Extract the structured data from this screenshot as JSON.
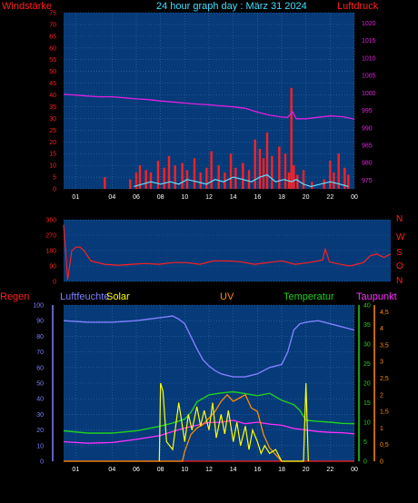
{
  "title": "24 hour graph day : März 31 2024",
  "colors": {
    "panel_bg": "#063a78",
    "grid": "#2f6fb8",
    "wind_axis": "#ff2020",
    "pressure_axis": "#e020e0",
    "title": "#40e0ff",
    "humidity": "#8080ff",
    "solar": "#ffff00",
    "uv": "#ff8c00",
    "temperature": "#20d020",
    "dewpoint": "#ff30ff",
    "rain": "#ff2020",
    "gust": "#ff2020",
    "wind": "#60e0ff",
    "direction": "#ff2020",
    "axis_tick_text": "#ffffff"
  },
  "chart_data": [
    {
      "type": "line",
      "name": "wind_pressure",
      "left_label": "Windstärke",
      "right_label": "Luftdruck",
      "x_ticks": [
        "01",
        "04",
        "06",
        "08",
        "10",
        "12",
        "14",
        "16",
        "18",
        "20",
        "22",
        "00"
      ],
      "left_ticks": [
        "0",
        "5",
        "10",
        "15",
        "20",
        "25",
        "30",
        "35",
        "40",
        "45",
        "50",
        "55",
        "60",
        "65",
        "70",
        "75"
      ],
      "right_ticks": [
        "975",
        "980",
        "985",
        "990",
        "995",
        "1000",
        "1005",
        "1010",
        "1015",
        "1020"
      ],
      "left_range": [
        0,
        75
      ],
      "right_range": [
        972.5,
        1023
      ],
      "pressure": {
        "x": [
          0,
          1,
          2,
          3,
          4,
          5,
          6,
          7,
          8,
          9,
          10,
          11,
          12,
          13,
          14,
          15,
          16,
          17,
          18,
          18.5,
          18.9,
          19.2,
          20,
          21,
          22,
          23,
          24
        ],
        "y": [
          999.6,
          999.4,
          999.1,
          998.9,
          998.9,
          998.6,
          998.3,
          998.1,
          997.7,
          997.4,
          997.1,
          996.8,
          996.6,
          996.3,
          996.0,
          995.6,
          994.5,
          993.6,
          993.1,
          993.0,
          994.6,
          992.6,
          992.6,
          993.0,
          993.4,
          993.2,
          992.5
        ]
      },
      "gust": {
        "x": [
          3.3,
          3.4,
          3.5,
          5.5,
          6,
          6.3,
          6.8,
          7.2,
          7.8,
          8.3,
          8.7,
          9.2,
          9.8,
          10.2,
          10.8,
          11.3,
          11.8,
          12.2,
          12.8,
          13.3,
          13.8,
          14.2,
          14.8,
          15.3,
          15.8,
          16.2,
          16.5,
          16.8,
          17.2,
          17.8,
          18.3,
          18.6,
          18.8,
          19.0,
          19.3,
          19.8,
          20.5,
          21.5,
          22.0,
          22.3,
          22.7,
          23.2,
          23.5
        ],
        "y": [
          0,
          5,
          0,
          4,
          7,
          10,
          8,
          7,
          12,
          9,
          14,
          10,
          11,
          8,
          13,
          7,
          9,
          16,
          10,
          7,
          15,
          9,
          11,
          8,
          21,
          17,
          13,
          24,
          14,
          18,
          15,
          7,
          43,
          10,
          6,
          8,
          3,
          4,
          12,
          7,
          15,
          9,
          6
        ]
      },
      "wind": {
        "x": [
          5.8,
          6.5,
          7.2,
          8.0,
          8.8,
          9.5,
          10.2,
          11.0,
          11.8,
          12.5,
          13.2,
          14.0,
          14.8,
          15.5,
          16.2,
          16.8,
          17.5,
          18.2,
          18.8,
          19.2,
          19.8,
          20.4,
          21.2,
          22.0,
          22.8,
          23.5
        ],
        "y": [
          1,
          2,
          3,
          2,
          3,
          2,
          4,
          3,
          2,
          4,
          3,
          5,
          4,
          3,
          5,
          6,
          3,
          4,
          3,
          4,
          2,
          1,
          2,
          3,
          2,
          1
        ]
      }
    },
    {
      "type": "scatter",
      "name": "wind_direction",
      "right_labels": [
        "N",
        "W",
        "S",
        "O",
        "N"
      ],
      "left_ticks": [
        "0",
        "90",
        "180",
        "270",
        "360"
      ],
      "range": [
        0,
        360
      ],
      "x": [
        0,
        0.3,
        0.6,
        0.9,
        1.2,
        1.5,
        2,
        3,
        4,
        5,
        6,
        7,
        8,
        9,
        10,
        11,
        12,
        13,
        14,
        15,
        16,
        17,
        18,
        19,
        19.2,
        19.5,
        20,
        21,
        22,
        22.5,
        23,
        23.5,
        24
      ],
      "y": [
        330,
        10,
        180,
        200,
        200,
        180,
        120,
        100,
        95,
        100,
        105,
        100,
        110,
        110,
        100,
        120,
        120,
        115,
        100,
        110,
        120,
        100,
        110,
        125,
        190,
        115,
        105,
        90,
        110,
        150,
        160,
        140,
        160
      ]
    },
    {
      "type": "line",
      "name": "climate",
      "labels": [
        "Regen",
        "Luftfeuchte",
        "Solar",
        "UV",
        "Temperatur",
        "Taupunkt"
      ],
      "x_ticks": [
        "01",
        "04",
        "06",
        "08",
        "10",
        "12",
        "14",
        "16",
        "18",
        "20",
        "22",
        "00"
      ],
      "humidity_ticks": [
        "0",
        "10",
        "20",
        "30",
        "40",
        "50",
        "60",
        "70",
        "80",
        "90",
        "100"
      ],
      "temperature_ticks": [
        "0",
        "5",
        "10",
        "15",
        "20",
        "25",
        "30",
        "35",
        "40"
      ],
      "uv_ticks": [
        "0",
        "0,5",
        "1",
        "1,5",
        "2",
        "2,5",
        "3",
        "3,5",
        "4",
        "4,5"
      ],
      "humidity": {
        "x": [
          0,
          2,
          4,
          6,
          7,
          8,
          9,
          9.5,
          10,
          10.5,
          11,
          11.5,
          12,
          12.5,
          13,
          13.5,
          14,
          15,
          16,
          17,
          18,
          18.5,
          19,
          19.5,
          20,
          21,
          22,
          23,
          24
        ],
        "y": [
          90,
          89,
          89,
          90,
          91,
          92,
          93,
          91,
          88,
          80,
          72,
          65,
          61,
          58,
          56,
          55,
          54,
          54,
          56,
          60,
          62,
          70,
          84,
          88,
          89,
          90,
          88,
          86,
          84
        ]
      },
      "temperature": {
        "x": [
          0,
          2,
          4,
          6,
          8,
          9,
          10,
          10.5,
          11,
          12,
          13,
          14,
          15,
          16,
          17,
          18,
          19,
          19.5,
          20,
          21,
          22,
          23,
          24
        ],
        "y": [
          7.8,
          7.2,
          7.2,
          7.8,
          9.0,
          9.8,
          10.8,
          12.5,
          15.2,
          17.0,
          17.5,
          17.8,
          17.3,
          16.8,
          17.4,
          15.6,
          14.5,
          13.0,
          10.5,
          10.2,
          10.0,
          9.7,
          9.6
        ]
      },
      "dewpoint": {
        "x": [
          0,
          2,
          4,
          6,
          8,
          9,
          10,
          11,
          12,
          13,
          14,
          15,
          16,
          17,
          18,
          19,
          20,
          21,
          22,
          23,
          24
        ],
        "y": [
          5.0,
          4.6,
          4.8,
          5.6,
          6.6,
          7.6,
          8.5,
          9.2,
          9.9,
          10.0,
          10.5,
          9.6,
          10.0,
          9.5,
          9.2,
          8.4,
          8.0,
          7.6,
          7.4,
          7.3,
          7.0
        ]
      },
      "solar": {
        "x": [
          7.9,
          8.0,
          8.2,
          8.5,
          9,
          9.5,
          10,
          10.3,
          10.6,
          11,
          11.3,
          11.6,
          12,
          12.3,
          12.6,
          13,
          13.3,
          13.6,
          14,
          14.3,
          14.6,
          15,
          15.3,
          15.6,
          16,
          16.3,
          16.6,
          17,
          17.5,
          18,
          18.3,
          19,
          19.5,
          19.8,
          20.0,
          20.2
        ],
        "y": [
          0,
          20,
          18,
          5,
          3,
          15,
          5,
          12,
          8,
          14,
          9,
          13,
          8,
          15,
          6,
          12,
          7,
          13,
          5,
          10,
          4,
          9,
          3,
          8,
          5,
          2,
          4,
          2,
          3,
          0,
          0,
          0,
          0,
          0,
          20,
          0
        ]
      },
      "uv": {
        "x": [
          0,
          9.8,
          10,
          10.5,
          11,
          11.5,
          12,
          12.5,
          13,
          13.5,
          14,
          14.5,
          15,
          15.5,
          16,
          16.5,
          17,
          17.5,
          18
        ],
        "y": [
          0,
          0,
          0.3,
          0.8,
          1.0,
          1.1,
          1.3,
          1.5,
          1.8,
          2.0,
          1.8,
          1.9,
          2.0,
          1.6,
          1.5,
          0.8,
          0.4,
          0.2,
          0
        ]
      },
      "rain": {
        "x": [
          0,
          1,
          2,
          3,
          4,
          5,
          6,
          7,
          8,
          9,
          10,
          11,
          12,
          13,
          14,
          15,
          16,
          17,
          18,
          19,
          20,
          21,
          22,
          23,
          24
        ],
        "y": [
          0,
          0,
          0,
          0,
          0,
          0,
          0,
          0,
          0,
          0,
          0,
          0,
          0,
          0,
          0,
          0,
          0,
          0,
          0,
          0,
          0,
          0,
          0,
          0,
          0
        ]
      }
    }
  ]
}
